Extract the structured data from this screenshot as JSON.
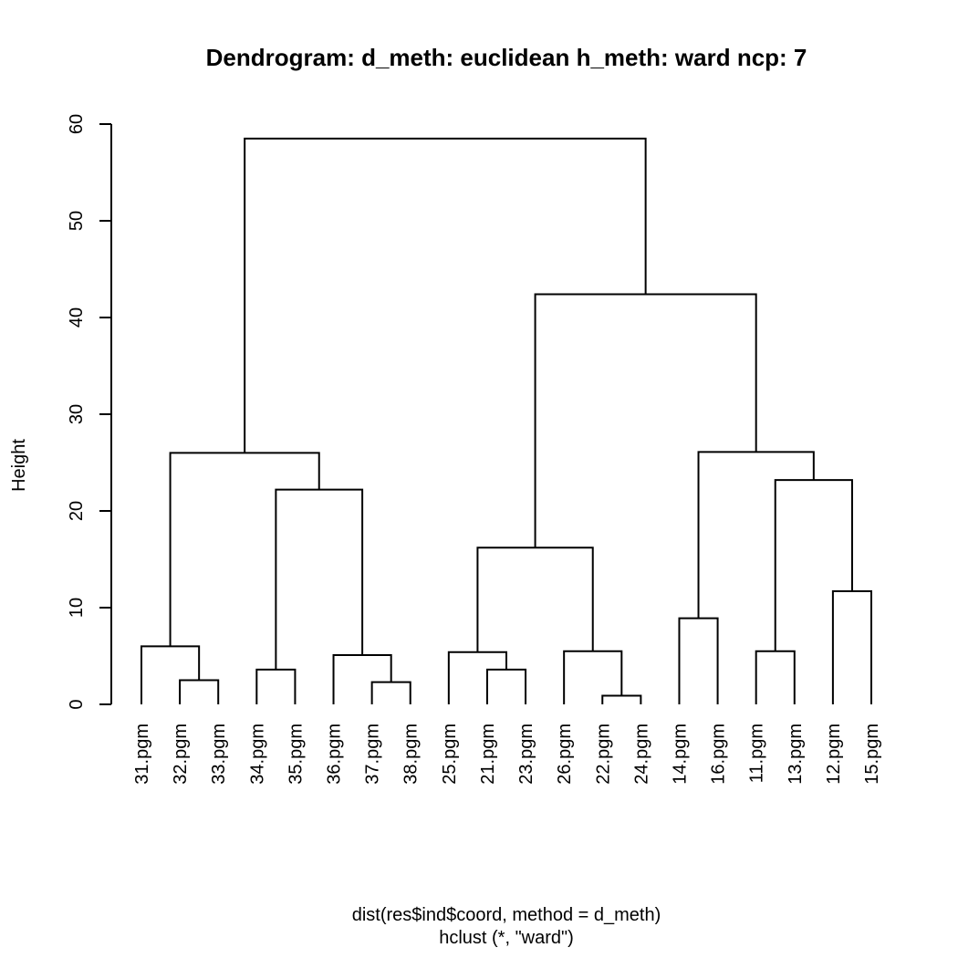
{
  "chart_data": {
    "type": "dendrogram",
    "title": "Dendrogram: d_meth: euclidean h_meth: ward ncp: 7",
    "ylabel": "Height",
    "xlabel": "dist(res$ind$coord, method = d_meth)",
    "sublabel": "hclust (*, \"ward\")",
    "ylim": [
      0,
      60
    ],
    "yticks": [
      0,
      10,
      20,
      30,
      40,
      50,
      60
    ],
    "leaves": [
      "31.pgm",
      "32.pgm",
      "33.pgm",
      "34.pgm",
      "35.pgm",
      "36.pgm",
      "37.pgm",
      "38.pgm",
      "25.pgm",
      "21.pgm",
      "23.pgm",
      "26.pgm",
      "22.pgm",
      "24.pgm",
      "14.pgm",
      "16.pgm",
      "11.pgm",
      "13.pgm",
      "12.pgm",
      "15.pgm"
    ],
    "merges": [
      {
        "left": "32.pgm",
        "right": "33.pgm",
        "height": 2.5
      },
      {
        "left": "31.pgm",
        "right": 1,
        "height": 6.0
      },
      {
        "left": "34.pgm",
        "right": "35.pgm",
        "height": 3.6
      },
      {
        "left": "37.pgm",
        "right": "38.pgm",
        "height": 2.3
      },
      {
        "left": "36.pgm",
        "right": 4,
        "height": 5.1
      },
      {
        "left": 3,
        "right": 5,
        "height": 22.2
      },
      {
        "left": 2,
        "right": 6,
        "height": 26.0
      },
      {
        "left": "21.pgm",
        "right": "23.pgm",
        "height": 3.6
      },
      {
        "left": "25.pgm",
        "right": 8,
        "height": 5.4
      },
      {
        "left": "22.pgm",
        "right": "24.pgm",
        "height": 0.9
      },
      {
        "left": "26.pgm",
        "right": 10,
        "height": 5.5
      },
      {
        "left": 9,
        "right": 11,
        "height": 16.2
      },
      {
        "left": "14.pgm",
        "right": "16.pgm",
        "height": 8.9
      },
      {
        "left": "11.pgm",
        "right": "13.pgm",
        "height": 5.5
      },
      {
        "left": "12.pgm",
        "right": "15.pgm",
        "height": 11.7
      },
      {
        "left": 14,
        "right": 15,
        "height": 23.2
      },
      {
        "left": 13,
        "right": 16,
        "height": 26.1
      },
      {
        "left": 12,
        "right": 17,
        "height": 42.4
      },
      {
        "left": 7,
        "right": 18,
        "height": 58.5
      }
    ]
  }
}
